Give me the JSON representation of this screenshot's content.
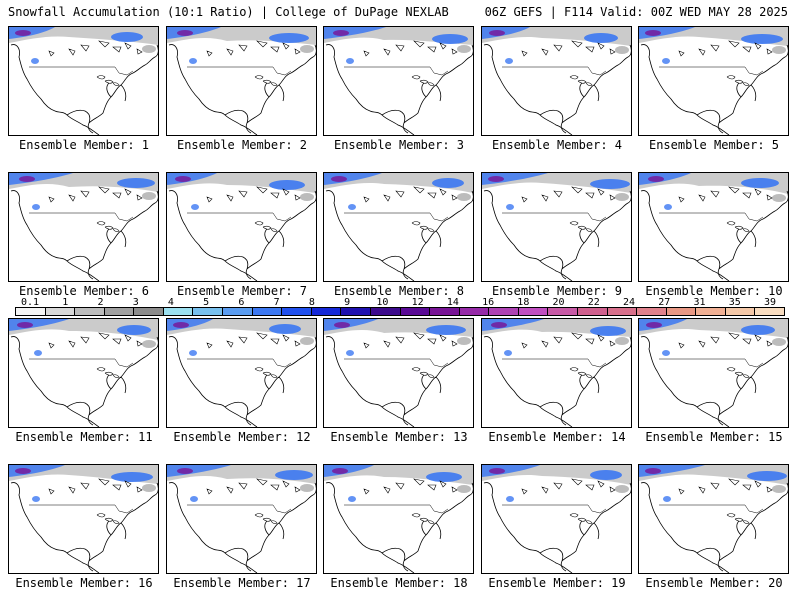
{
  "header": {
    "left": "Snowfall Accumulation (10:1 Ratio) | College of DuPage NEXLAB",
    "right": "06Z GEFS | F114 Valid: 00Z WED MAY 28 2025"
  },
  "panels": [
    {
      "label": "Ensemble Member: 1"
    },
    {
      "label": "Ensemble Member: 2"
    },
    {
      "label": "Ensemble Member: 3"
    },
    {
      "label": "Ensemble Member: 4"
    },
    {
      "label": "Ensemble Member: 5"
    },
    {
      "label": "Ensemble Member: 6"
    },
    {
      "label": "Ensemble Member: 7"
    },
    {
      "label": "Ensemble Member: 8"
    },
    {
      "label": "Ensemble Member: 9"
    },
    {
      "label": "Ensemble Member: 10"
    },
    {
      "label": "Ensemble Member: 11"
    },
    {
      "label": "Ensemble Member: 12"
    },
    {
      "label": "Ensemble Member: 13"
    },
    {
      "label": "Ensemble Member: 14"
    },
    {
      "label": "Ensemble Member: 15"
    },
    {
      "label": "Ensemble Member: 16"
    },
    {
      "label": "Ensemble Member: 17"
    },
    {
      "label": "Ensemble Member: 18"
    },
    {
      "label": "Ensemble Member: 19"
    },
    {
      "label": "Ensemble Member: 20"
    }
  ],
  "colorbar": {
    "ticks": [
      "0.1",
      "1",
      "2",
      "3",
      "4",
      "5",
      "6",
      "7",
      "8",
      "9",
      "10",
      "12",
      "14",
      "16",
      "18",
      "20",
      "22",
      "24",
      "27",
      "31",
      "35",
      "39"
    ],
    "colors": [
      "#f4f4f4",
      "#d8d8d8",
      "#bcbcbc",
      "#a0a0a0",
      "#8c8c8c",
      "#9ce0f0",
      "#78c0ee",
      "#5a9cf0",
      "#3c78f2",
      "#2050ee",
      "#1428d8",
      "#1e10b0",
      "#3c0a8c",
      "#5a0a96",
      "#781496",
      "#962aa8",
      "#ae42b4",
      "#c04ec0",
      "#c85aa6",
      "#d0608e",
      "#d8708c",
      "#e0828c",
      "#e89884",
      "#f0b094",
      "#f4c8a8",
      "#f8dcc0"
    ]
  },
  "colors": {
    "border": "#000000",
    "snow_light": "#a0a0a0",
    "snow_blue": "#3c78f2",
    "snow_purple": "#781496"
  }
}
